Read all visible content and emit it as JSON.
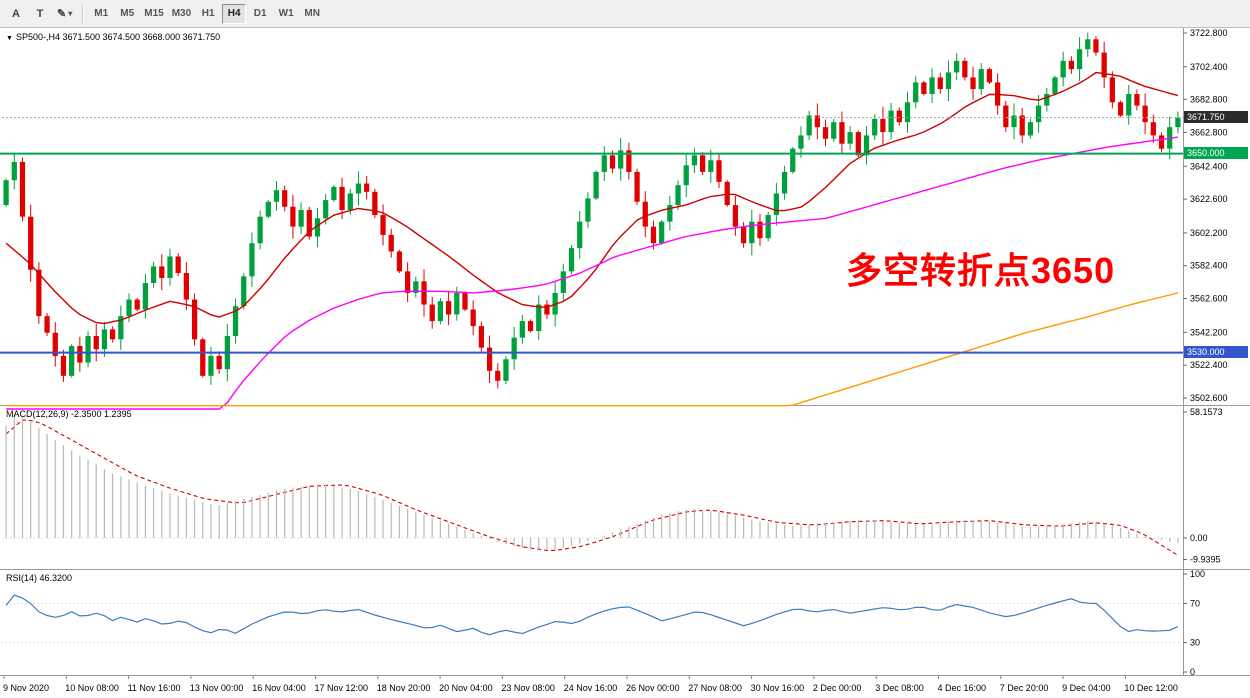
{
  "toolbar": {
    "buttons": [
      {
        "label": "A"
      },
      {
        "label": "T"
      },
      {
        "icon": "✎",
        "caret": "▾"
      }
    ],
    "timeframes": [
      "M1",
      "M5",
      "M15",
      "M30",
      "H1",
      "H4",
      "D1",
      "W1",
      "MN"
    ],
    "active_timeframe": "H4"
  },
  "chart_header": {
    "icon": "▼",
    "symbol_line": "SP500-,H4 3671.500 3674.500 3668.000 3671.750"
  },
  "panels": {
    "macd_header": "MACD(12,26,9) -2.3500 1.2395",
    "rsi_header": "RSI(14) 46.3200"
  },
  "annotation": {
    "text": "多空转折点3650",
    "color": "#ff0000"
  },
  "price_tags": {
    "current": "3671.750",
    "green_level": "3650.000",
    "blue_level": "3530.000"
  },
  "colors": {
    "bull": "#00a03c",
    "bear": "#e00000",
    "fast_ma": "#cc0000",
    "mid_ma": "#ff00ff",
    "slow_ma": "#ff9900",
    "green_level": "#00a651",
    "blue_level": "#3355cc",
    "bid_line": "#a8a8a8",
    "macd_hist": "#b8b8b8",
    "macd_signal": "#d00000",
    "rsi_line": "#3a7ebf",
    "axis_text": "#000000",
    "panel_border": "#9a9a9a",
    "dotted_level": "#c8c8c8"
  },
  "chart_data": {
    "type": "candlestick",
    "symbol": "SP500-",
    "timeframe": "H4",
    "ohlc_current": {
      "open": 3671.5,
      "high": 3674.5,
      "low": 3668.0,
      "close": 3671.75
    },
    "ylim": [
      3499.0,
      3724.6
    ],
    "candles": {
      "first_open": 3619,
      "closes": [
        3634,
        3645,
        3612,
        3580,
        3552,
        3542,
        3528,
        3516,
        3534,
        3524,
        3540,
        3532,
        3544,
        3538,
        3552,
        3562,
        3556,
        3572,
        3582,
        3575,
        3588,
        3578,
        3562,
        3538,
        3516,
        3528,
        3520,
        3540,
        3558,
        3576,
        3596,
        3612,
        3621,
        3628,
        3618,
        3606,
        3616,
        3600,
        3611,
        3622,
        3630,
        3616,
        3626,
        3632,
        3627,
        3613,
        3601,
        3591,
        3579,
        3566,
        3573,
        3559,
        3549,
        3561,
        3553,
        3566,
        3556,
        3546,
        3533,
        3519,
        3513,
        3526,
        3539,
        3549,
        3543,
        3559,
        3553,
        3566,
        3579,
        3593,
        3609,
        3623,
        3639,
        3649,
        3641,
        3652,
        3639,
        3621,
        3606,
        3596,
        3609,
        3619,
        3631,
        3643,
        3649,
        3639,
        3646,
        3633,
        3619,
        3606,
        3596,
        3609,
        3599,
        3613,
        3626,
        3639,
        3653,
        3661,
        3673,
        3666,
        3659,
        3669,
        3656,
        3663,
        3649,
        3661,
        3671,
        3663,
        3676,
        3669,
        3681,
        3693,
        3686,
        3696,
        3689,
        3699,
        3706,
        3696,
        3689,
        3701,
        3693,
        3679,
        3666,
        3673,
        3661,
        3669,
        3679,
        3686,
        3696,
        3706,
        3701,
        3713,
        3719,
        3711,
        3696,
        3681,
        3673,
        3686,
        3679,
        3669,
        3661,
        3653,
        3666,
        3671.75
      ]
    },
    "levels": [
      {
        "price": 3650,
        "label": "3650.000",
        "colorKey": "green_level"
      },
      {
        "price": 3530,
        "label": "3530.000",
        "colorKey": "blue_level"
      }
    ],
    "current_price": 3671.75,
    "moving_averages": [
      {
        "name": "fast-ma",
        "colorKey": "fast_ma",
        "anchors": [
          [
            0.0,
            3596
          ],
          [
            0.02,
            3584
          ],
          [
            0.04,
            3568
          ],
          [
            0.06,
            3554
          ],
          [
            0.08,
            3547
          ],
          [
            0.1,
            3550
          ],
          [
            0.12,
            3556
          ],
          [
            0.14,
            3561
          ],
          [
            0.16,
            3558
          ],
          [
            0.18,
            3551
          ],
          [
            0.2,
            3556
          ],
          [
            0.22,
            3571
          ],
          [
            0.24,
            3589
          ],
          [
            0.26,
            3604
          ],
          [
            0.28,
            3613
          ],
          [
            0.3,
            3617
          ],
          [
            0.32,
            3615
          ],
          [
            0.34,
            3607
          ],
          [
            0.36,
            3597
          ],
          [
            0.38,
            3587
          ],
          [
            0.4,
            3576
          ],
          [
            0.42,
            3566
          ],
          [
            0.44,
            3559
          ],
          [
            0.46,
            3557
          ],
          [
            0.48,
            3562
          ],
          [
            0.5,
            3577
          ],
          [
            0.52,
            3597
          ],
          [
            0.54,
            3611
          ],
          [
            0.56,
            3616
          ],
          [
            0.58,
            3619
          ],
          [
            0.6,
            3624
          ],
          [
            0.62,
            3626
          ],
          [
            0.64,
            3620
          ],
          [
            0.66,
            3615
          ],
          [
            0.68,
            3618
          ],
          [
            0.7,
            3630
          ],
          [
            0.72,
            3644
          ],
          [
            0.74,
            3653
          ],
          [
            0.76,
            3658
          ],
          [
            0.78,
            3662
          ],
          [
            0.8,
            3669
          ],
          [
            0.82,
            3679
          ],
          [
            0.84,
            3686
          ],
          [
            0.86,
            3685
          ],
          [
            0.88,
            3682
          ],
          [
            0.9,
            3687
          ],
          [
            0.92,
            3694
          ],
          [
            0.93,
            3699
          ],
          [
            0.95,
            3697
          ],
          [
            0.97,
            3691
          ],
          [
            1.0,
            3685
          ]
        ]
      },
      {
        "name": "mid-ma",
        "colorKey": "mid_ma",
        "anchors": [
          [
            0.185,
            3496
          ],
          [
            0.2,
            3511
          ],
          [
            0.22,
            3527
          ],
          [
            0.24,
            3541
          ],
          [
            0.26,
            3550
          ],
          [
            0.28,
            3557
          ],
          [
            0.3,
            3562
          ],
          [
            0.32,
            3566
          ],
          [
            0.34,
            3567
          ],
          [
            0.37,
            3567
          ],
          [
            0.4,
            3566
          ],
          [
            0.43,
            3568
          ],
          [
            0.46,
            3571
          ],
          [
            0.49,
            3578
          ],
          [
            0.52,
            3588
          ],
          [
            0.55,
            3594
          ],
          [
            0.58,
            3600
          ],
          [
            0.61,
            3604
          ],
          [
            0.64,
            3607
          ],
          [
            0.67,
            3609
          ],
          [
            0.7,
            3611
          ],
          [
            0.73,
            3617
          ],
          [
            0.76,
            3623
          ],
          [
            0.79,
            3629
          ],
          [
            0.82,
            3635
          ],
          [
            0.85,
            3641
          ],
          [
            0.88,
            3646
          ],
          [
            0.91,
            3650
          ],
          [
            0.94,
            3654
          ],
          [
            0.97,
            3657
          ],
          [
            1.0,
            3660
          ]
        ]
      },
      {
        "name": "slow-ma",
        "colorKey": "slow_ma",
        "anchors": [
          [
            0.67,
            3498
          ],
          [
            0.72,
            3509
          ],
          [
            0.77,
            3520
          ],
          [
            0.82,
            3531
          ],
          [
            0.87,
            3542
          ],
          [
            0.92,
            3551
          ],
          [
            0.96,
            3559
          ],
          [
            1.0,
            3566
          ]
        ]
      }
    ],
    "price_axis_labels": [
      {
        "v": 3722.8,
        "text": "3722.800"
      },
      {
        "v": 3702.4,
        "text": "3702.400"
      },
      {
        "v": 3682.8,
        "text": "3682.800"
      },
      {
        "v": 3662.8,
        "text": "3662.800"
      },
      {
        "v": 3642.4,
        "text": "3642.400"
      },
      {
        "v": 3622.6,
        "text": "3622.600"
      },
      {
        "v": 3602.2,
        "text": "3602.200"
      },
      {
        "v": 3582.4,
        "text": "3582.400"
      },
      {
        "v": 3562.6,
        "text": "3562.600"
      },
      {
        "v": 3542.2,
        "text": "3542.200"
      },
      {
        "v": 3522.4,
        "text": "3522.400"
      },
      {
        "v": 3502.6,
        "text": "3502.600"
      }
    ],
    "macd": {
      "label": "MACD(12,26,9)",
      "values": [
        -2.35,
        1.2395
      ],
      "ylim": [
        -13.85,
        60.93
      ],
      "hist_anchors": [
        [
          0,
          52
        ],
        [
          0.008,
          57.5
        ],
        [
          0.02,
          54
        ],
        [
          0.04,
          46
        ],
        [
          0.06,
          39
        ],
        [
          0.09,
          30
        ],
        [
          0.12,
          24
        ],
        [
          0.15,
          19
        ],
        [
          0.18,
          15
        ],
        [
          0.21,
          19
        ],
        [
          0.24,
          23
        ],
        [
          0.27,
          25
        ],
        [
          0.3,
          22
        ],
        [
          0.33,
          16
        ],
        [
          0.36,
          10
        ],
        [
          0.39,
          4
        ],
        [
          0.42,
          -2
        ],
        [
          0.45,
          -6
        ],
        [
          0.47,
          -5.5
        ],
        [
          0.5,
          -1
        ],
        [
          0.53,
          5
        ],
        [
          0.56,
          11
        ],
        [
          0.585,
          13.5
        ],
        [
          0.61,
          12
        ],
        [
          0.64,
          8
        ],
        [
          0.67,
          5.5
        ],
        [
          0.7,
          7
        ],
        [
          0.73,
          8.5
        ],
        [
          0.76,
          7
        ],
        [
          0.79,
          6
        ],
        [
          0.815,
          8.5
        ],
        [
          0.84,
          7.5
        ],
        [
          0.87,
          5
        ],
        [
          0.9,
          6
        ],
        [
          0.925,
          8
        ],
        [
          0.95,
          5
        ],
        [
          0.97,
          1
        ],
        [
          0.99,
          -1.5
        ],
        [
          1,
          -2.35
        ]
      ],
      "signal_anchors": [
        [
          0,
          48
        ],
        [
          0.015,
          55
        ],
        [
          0.03,
          53
        ],
        [
          0.05,
          47
        ],
        [
          0.08,
          38
        ],
        [
          0.11,
          29
        ],
        [
          0.14,
          23
        ],
        [
          0.17,
          18
        ],
        [
          0.2,
          16
        ],
        [
          0.23,
          20
        ],
        [
          0.26,
          24
        ],
        [
          0.29,
          24.5
        ],
        [
          0.32,
          20
        ],
        [
          0.35,
          13
        ],
        [
          0.38,
          7
        ],
        [
          0.41,
          1
        ],
        [
          0.44,
          -4
        ],
        [
          0.465,
          -6
        ],
        [
          0.49,
          -4
        ],
        [
          0.52,
          1
        ],
        [
          0.55,
          8
        ],
        [
          0.58,
          12
        ],
        [
          0.6,
          13
        ],
        [
          0.63,
          10.5
        ],
        [
          0.66,
          7
        ],
        [
          0.69,
          6
        ],
        [
          0.72,
          7.5
        ],
        [
          0.75,
          8
        ],
        [
          0.78,
          6.5
        ],
        [
          0.81,
          7.5
        ],
        [
          0.84,
          8
        ],
        [
          0.87,
          6
        ],
        [
          0.9,
          5.5
        ],
        [
          0.93,
          7
        ],
        [
          0.95,
          6
        ],
        [
          0.97,
          2
        ],
        [
          0.985,
          -3
        ],
        [
          1,
          -8
        ]
      ],
      "axis_labels": [
        {
          "v": 58.1573,
          "text": "58.1573"
        },
        {
          "v": 0,
          "text": "0.00"
        },
        {
          "v": -9.9395,
          "text": "-9.9395"
        }
      ]
    },
    "rsi": {
      "label": "RSI(14)",
      "value": 46.32,
      "ylim": [
        -3.06,
        104.08
      ],
      "dotted_levels": [
        70,
        30
      ],
      "anchors": [
        [
          0,
          68
        ],
        [
          0.008,
          80
        ],
        [
          0.02,
          71
        ],
        [
          0.03,
          59
        ],
        [
          0.045,
          55
        ],
        [
          0.055,
          62
        ],
        [
          0.065,
          56
        ],
        [
          0.08,
          61
        ],
        [
          0.09,
          52
        ],
        [
          0.1,
          57
        ],
        [
          0.11,
          50
        ],
        [
          0.12,
          55
        ],
        [
          0.135,
          48
        ],
        [
          0.15,
          53
        ],
        [
          0.165,
          43
        ],
        [
          0.175,
          40
        ],
        [
          0.185,
          45
        ],
        [
          0.195,
          39
        ],
        [
          0.21,
          49
        ],
        [
          0.225,
          57
        ],
        [
          0.24,
          62
        ],
        [
          0.255,
          59
        ],
        [
          0.27,
          64
        ],
        [
          0.285,
          61
        ],
        [
          0.3,
          64
        ],
        [
          0.315,
          58
        ],
        [
          0.33,
          53
        ],
        [
          0.345,
          49
        ],
        [
          0.36,
          44
        ],
        [
          0.37,
          48
        ],
        [
          0.385,
          41
        ],
        [
          0.4,
          45
        ],
        [
          0.41,
          37
        ],
        [
          0.425,
          43
        ],
        [
          0.44,
          39
        ],
        [
          0.455,
          46
        ],
        [
          0.47,
          52
        ],
        [
          0.485,
          49
        ],
        [
          0.5,
          58
        ],
        [
          0.515,
          64
        ],
        [
          0.53,
          67
        ],
        [
          0.545,
          60
        ],
        [
          0.56,
          52
        ],
        [
          0.575,
          57
        ],
        [
          0.59,
          62
        ],
        [
          0.6,
          59
        ],
        [
          0.615,
          53
        ],
        [
          0.63,
          47
        ],
        [
          0.645,
          53
        ],
        [
          0.66,
          60
        ],
        [
          0.675,
          65
        ],
        [
          0.69,
          61
        ],
        [
          0.705,
          64
        ],
        [
          0.72,
          60
        ],
        [
          0.735,
          63
        ],
        [
          0.75,
          66
        ],
        [
          0.765,
          63
        ],
        [
          0.78,
          67
        ],
        [
          0.795,
          62
        ],
        [
          0.81,
          69
        ],
        [
          0.825,
          66
        ],
        [
          0.84,
          60
        ],
        [
          0.855,
          56
        ],
        [
          0.87,
          61
        ],
        [
          0.885,
          67
        ],
        [
          0.9,
          72
        ],
        [
          0.91,
          75
        ],
        [
          0.92,
          69
        ],
        [
          0.928,
          72
        ],
        [
          0.94,
          60
        ],
        [
          0.95,
          47
        ],
        [
          0.96,
          40
        ],
        [
          0.968,
          45
        ],
        [
          0.975,
          40
        ],
        [
          0.982,
          43
        ],
        [
          0.99,
          41
        ],
        [
          1,
          46.3
        ]
      ],
      "axis_labels": [
        {
          "v": 100,
          "text": "100"
        },
        {
          "v": 70,
          "text": "70"
        },
        {
          "v": 30,
          "text": "30"
        },
        {
          "v": 0,
          "text": "0"
        }
      ]
    },
    "time_labels": [
      "9 Nov 2020",
      "10 Nov 08:00",
      "11 Nov 16:00",
      "13 Nov 00:00",
      "16 Nov 04:00",
      "17 Nov 12:00",
      "18 Nov 20:00",
      "20 Nov 04:00",
      "23 Nov 08:00",
      "24 Nov 16:00",
      "26 Nov 00:00",
      "27 Nov 08:00",
      "30 Nov 16:00",
      "2 Dec 00:00",
      "3 Dec 08:00",
      "4 Dec 16:00",
      "7 Dec 20:00",
      "9 Dec 04:00",
      "10 Dec 12:00"
    ]
  }
}
